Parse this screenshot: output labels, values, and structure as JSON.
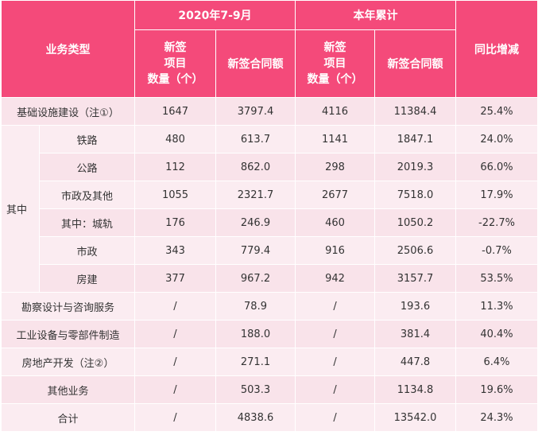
{
  "header": {
    "business_type": "业务类型",
    "period": "2020年7-9月",
    "ytd": "本年累计",
    "yoy": "同比增减",
    "count_line1": "新签",
    "count_line2": "项目",
    "count_line3": "数量（个）",
    "amount": "新签合同额"
  },
  "rows": [
    {
      "label": "基础设施建设（注①）",
      "count": "1647",
      "amount": "3797.4",
      "ytd_count": "4116",
      "ytd_amount": "11384.4",
      "yoy": "25.4%"
    },
    {
      "label": "铁路",
      "count": "480",
      "amount": "613.7",
      "ytd_count": "1141",
      "ytd_amount": "1847.1",
      "yoy": "24.0%"
    },
    {
      "label": "公路",
      "count": "112",
      "amount": "862.0",
      "ytd_count": "298",
      "ytd_amount": "2019.3",
      "yoy": "66.0%"
    },
    {
      "label": "市政及其他",
      "count": "1055",
      "amount": "2321.7",
      "ytd_count": "2677",
      "ytd_amount": "7518.0",
      "yoy": "17.9%"
    },
    {
      "label": "其中：城轨",
      "count": "176",
      "amount": "246.9",
      "ytd_count": "460",
      "ytd_amount": "1050.2",
      "yoy": "-22.7%"
    },
    {
      "label": "市政",
      "count": "343",
      "amount": "779.4",
      "ytd_count": "916",
      "ytd_amount": "2506.6",
      "yoy": "-0.7%"
    },
    {
      "label": "房建",
      "count": "377",
      "amount": "967.2",
      "ytd_count": "942",
      "ytd_amount": "3157.7",
      "yoy": "53.5%"
    },
    {
      "label": "勘察设计与咨询服务",
      "count": "/",
      "amount": "78.9",
      "ytd_count": "/",
      "ytd_amount": "193.6",
      "yoy": "11.3%"
    },
    {
      "label": "工业设备与零部件制造",
      "count": "/",
      "amount": "188.0",
      "ytd_count": "/",
      "ytd_amount": "381.4",
      "yoy": "40.4%"
    },
    {
      "label": "房地产开发（注②）",
      "count": "/",
      "amount": "271.1",
      "ytd_count": "/",
      "ytd_amount": "447.8",
      "yoy": "6.4%"
    },
    {
      "label": "其他业务",
      "count": "/",
      "amount": "503.3",
      "ytd_count": "/",
      "ytd_amount": "1134.8",
      "yoy": "19.6%"
    },
    {
      "label": "合计",
      "count": "/",
      "amount": "4838.6",
      "ytd_count": "/",
      "ytd_amount": "13542.0",
      "yoy": "24.3%"
    }
  ],
  "group_label": "其中"
}
